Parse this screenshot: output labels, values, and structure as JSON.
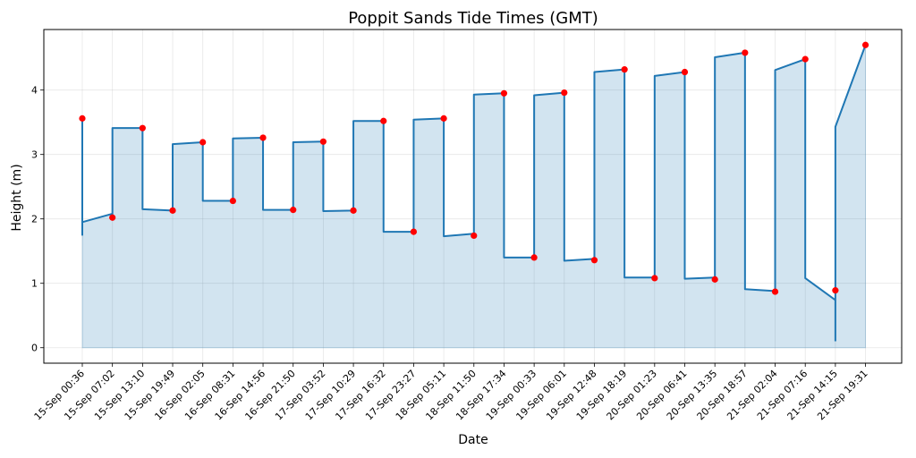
{
  "chart_data": {
    "type": "line",
    "title": "Poppit Sands Tide Times (GMT)",
    "xlabel": "Date",
    "ylabel": "Height (m)",
    "categories": [
      "15-Sep 00:36",
      "15-Sep 07:02",
      "15-Sep 13:10",
      "15-Sep 19:49",
      "16-Sep 02:05",
      "16-Sep 08:31",
      "16-Sep 14:56",
      "16-Sep 21:50",
      "17-Sep 03:52",
      "17-Sep 10:29",
      "17-Sep 16:32",
      "17-Sep 23:27",
      "18-Sep 05:11",
      "18-Sep 11:50",
      "18-Sep 17:34",
      "19-Sep 00:33",
      "19-Sep 06:01",
      "19-Sep 12:48",
      "19-Sep 18:19",
      "20-Sep 01:23",
      "20-Sep 06:41",
      "20-Sep 13:35",
      "20-Sep 18:57",
      "21-Sep 02:04",
      "21-Sep 07:16",
      "21-Sep 14:15",
      "21-Sep 19:31"
    ],
    "series": [
      {
        "values": [
          3.56,
          2.02,
          3.41,
          2.13,
          3.19,
          2.28,
          3.26,
          2.14,
          3.2,
          2.13,
          3.52,
          1.8,
          3.56,
          1.74,
          3.95,
          1.4,
          3.96,
          1.36,
          4.32,
          1.08,
          4.28,
          1.06,
          4.58,
          0.87,
          4.48,
          0.89,
          4.7
        ],
        "color": "#1f77b4",
        "marker_color": "#ff0000",
        "fill_color": "#1f77b4"
      }
    ],
    "ylim": [
      -0.24,
      4.94
    ],
    "yticks": [
      0,
      1,
      2,
      3,
      4
    ],
    "grid": true
  }
}
